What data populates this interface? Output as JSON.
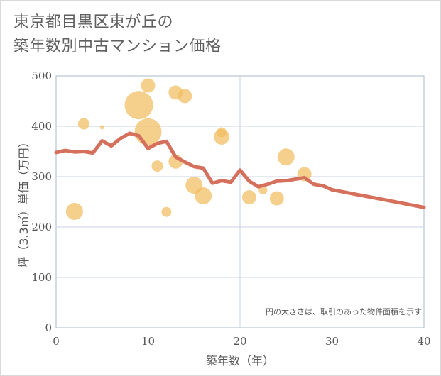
{
  "chart_data": {
    "type": "scatter",
    "title_line1": "東京都目黒区東が丘の",
    "title_line2": "築年数別中古マンション価格",
    "xlabel": "築年数（年）",
    "ylabel": "坪（3.3㎡）単価（万円）",
    "xlim": [
      0,
      40
    ],
    "ylim": [
      0,
      500
    ],
    "xticks": [
      0,
      10,
      20,
      30,
      40
    ],
    "yticks": [
      0,
      100,
      200,
      300,
      400,
      500
    ],
    "note": "円の大きさは、取引のあった物件面積を示す",
    "colors": {
      "bubble": "#f1bc5f",
      "line": "#d5705c",
      "grid": "#c8d3e3",
      "axis": "#a8b8cc"
    },
    "bubbles": [
      {
        "x": 2,
        "y": 231,
        "r": 12
      },
      {
        "x": 3,
        "y": 405,
        "r": 8
      },
      {
        "x": 5,
        "y": 398,
        "r": 3
      },
      {
        "x": 9,
        "y": 442,
        "r": 20
      },
      {
        "x": 10,
        "y": 481,
        "r": 10
      },
      {
        "x": 10,
        "y": 389,
        "r": 19
      },
      {
        "x": 11,
        "y": 321,
        "r": 8
      },
      {
        "x": 12,
        "y": 230,
        "r": 7
      },
      {
        "x": 13,
        "y": 467,
        "r": 10
      },
      {
        "x": 13,
        "y": 330,
        "r": 10
      },
      {
        "x": 14,
        "y": 460,
        "r": 10
      },
      {
        "x": 15,
        "y": 283,
        "r": 12
      },
      {
        "x": 16,
        "y": 262,
        "r": 12
      },
      {
        "x": 18,
        "y": 388,
        "r": 7
      },
      {
        "x": 18,
        "y": 379,
        "r": 11
      },
      {
        "x": 21,
        "y": 259,
        "r": 10
      },
      {
        "x": 22.5,
        "y": 273,
        "r": 6
      },
      {
        "x": 24,
        "y": 257,
        "r": 10
      },
      {
        "x": 25,
        "y": 339,
        "r": 12
      },
      {
        "x": 27,
        "y": 305,
        "r": 10
      }
    ],
    "trend": {
      "x": [
        0,
        1,
        2,
        3,
        4,
        5,
        6,
        7,
        8,
        9,
        10,
        11,
        12,
        13,
        14,
        15,
        16,
        17,
        18,
        19,
        20,
        21,
        22,
        23,
        24,
        25,
        26,
        27,
        28,
        29,
        30,
        40
      ],
      "y": [
        348,
        352,
        349,
        350,
        347,
        371,
        361,
        376,
        386,
        381,
        356,
        366,
        370,
        339,
        329,
        320,
        317,
        287,
        292,
        289,
        313,
        291,
        280,
        285,
        291,
        292,
        295,
        298,
        285,
        282,
        274,
        239
      ]
    }
  }
}
